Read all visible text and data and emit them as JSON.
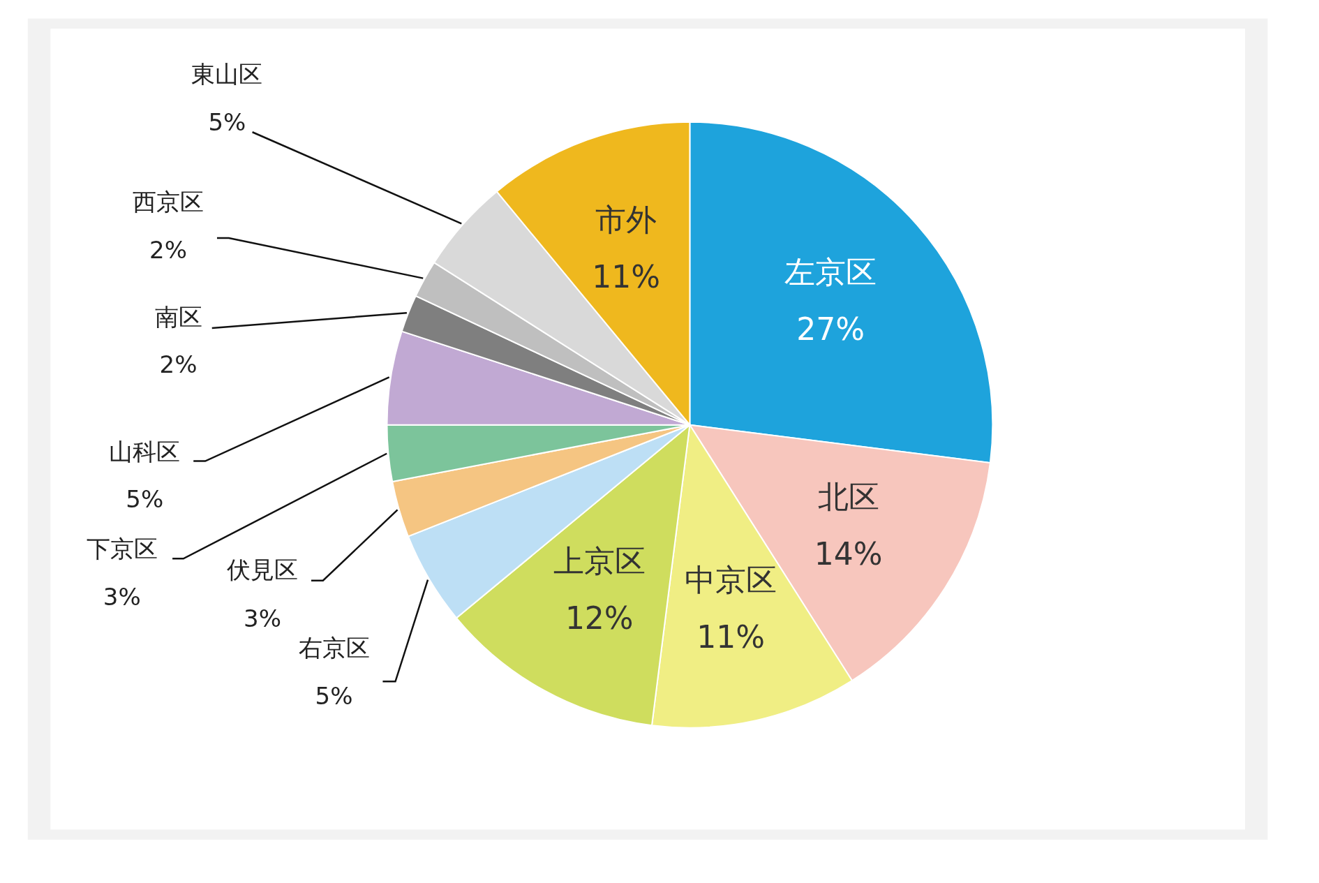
{
  "chart_data": {
    "type": "pie",
    "categories": [
      "左京区",
      "北区",
      "中京区",
      "上京区",
      "右京区",
      "伏見区",
      "下京区",
      "山科区",
      "南区",
      "西京区",
      "東山区",
      "市外"
    ],
    "values": [
      27,
      14,
      11,
      12,
      5,
      3,
      3,
      5,
      2,
      2,
      5,
      11
    ],
    "value_labels": [
      "27%",
      "14%",
      "11%",
      "12%",
      "5%",
      "3%",
      "3%",
      "5%",
      "2%",
      "2%",
      "5%",
      "11%"
    ],
    "colors": [
      "#1ea3dc",
      "#f7c6bd",
      "#f0ee84",
      "#cfdd5e",
      "#bddff5",
      "#f5c582",
      "#7cc49b",
      "#c1a9d3",
      "#7f7f7f",
      "#bfbfbf",
      "#d9d9d9",
      "#efb81e"
    ],
    "legend": false
  }
}
